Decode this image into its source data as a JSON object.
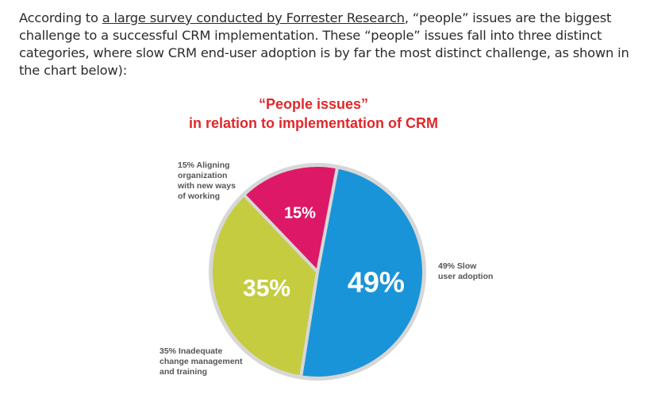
{
  "article": {
    "text_before_link": "According to ",
    "link_text": "a large survey conducted by Forrester Research",
    "text_after_link": ", “people” issues are the biggest challenge to a successful CRM implementation. These “people” issues fall into three distinct categories, where slow CRM end-user adoption is by far the most distinct challenge, as shown in the chart below):"
  },
  "chart_data": {
    "type": "pie",
    "title_line1": "“People issues”",
    "title_line2": "in relation to implementation of CRM",
    "slices": [
      {
        "label_lines": [
          "49% Slow",
          "user adoption"
        ],
        "value": 49,
        "value_label": "49%",
        "color": "#1a94d8"
      },
      {
        "label_lines": [
          "35% Inadequate",
          "change management",
          "and training"
        ],
        "value": 35,
        "value_label": "35%",
        "color": "#c5cc3f"
      },
      {
        "label_lines": [
          "15% Aligning",
          "organization",
          "with new ways",
          "of working"
        ],
        "value": 15,
        "value_label": "15%",
        "color": "#dd1866"
      }
    ],
    "title_color": "#e0282b",
    "outline_color": "#d7d7d7"
  }
}
